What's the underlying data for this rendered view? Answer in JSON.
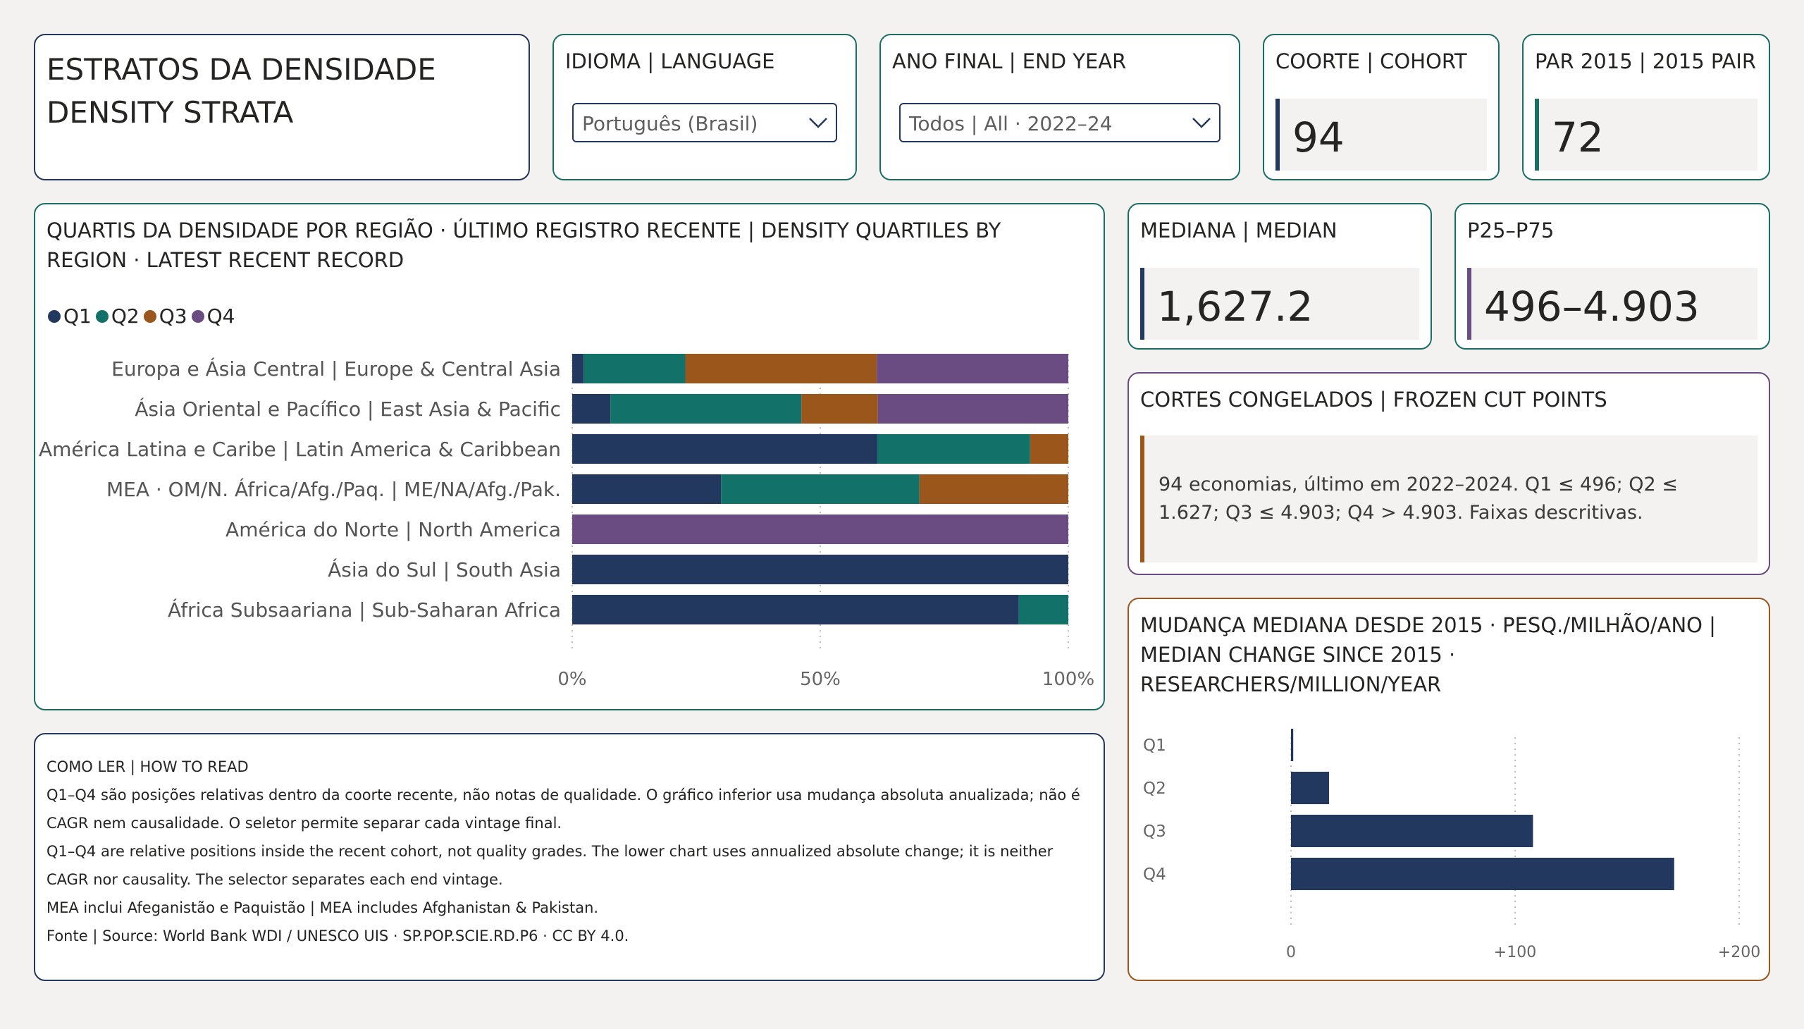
{
  "header": {
    "title_line1": "ESTRATOS DA DENSIDADE",
    "title_line2": "DENSITY STRATA"
  },
  "filters": {
    "language": {
      "label": "IDIOMA | LANGUAGE",
      "value": "Português (Brasil)"
    },
    "end_year": {
      "label": "ANO FINAL | END YEAR",
      "value": "Todos | All · 2022–24"
    }
  },
  "kpis": {
    "cohort": {
      "label": "COORTE | COHORT",
      "value": "94",
      "accent": "#22385e"
    },
    "pair": {
      "label": "PAR 2015 | 2015 PAIR",
      "value": "72",
      "accent": "#1a6e63"
    },
    "median": {
      "label": "MEDIANA | MEDIAN",
      "value": "1,627.2",
      "accent": "#22385e"
    },
    "iqr": {
      "label": "P25–P75",
      "value": "496–4.903",
      "accent": "#6a4b82"
    }
  },
  "frozen": {
    "title": "CORTES CONGELADOS | FROZEN CUT POINTS",
    "text": "94 economias, último em 2022–2024. Q1 ≤ 496; Q2 ≤ 1.627; Q3 ≤ 4.903; Q4 > 4.903. Faixas descritivas."
  },
  "howto": {
    "title": "COMO LER | HOW TO READ",
    "line1": "Q1–Q4 são posições relativas dentro da coorte recente, não notas de qualidade. O gráfico inferior usa mudança absoluta anualizada; não é CAGR nem causalidade. O seletor permite separar cada vintage final.",
    "line2": "Q1–Q4 are relative positions inside the recent cohort, not quality grades. The lower chart uses annualized absolute change; it is neither CAGR nor causality. The selector separates each end vintage.",
    "line3": "MEA inclui Afeganistão e Paquistão | MEA includes Afghanistan & Pakistan.",
    "line4": "Fonte | Source: World Bank WDI / UNESCO UIS · SP.POP.SCIE.RD.P6 · CC BY 4.0."
  },
  "colors": {
    "Q1": "#22385e",
    "Q2": "#12726a",
    "Q3": "#9b561c",
    "Q4": "#6a4b82"
  },
  "chart_data": [
    {
      "type": "bar",
      "stacked": "percent",
      "orientation": "horizontal",
      "title": "QUARTIS DA DENSIDADE POR REGIÃO · ÚLTIMO REGISTRO RECENTE | DENSITY QUARTILES BY REGION · LATEST RECENT RECORD",
      "categories": [
        "Europa e Ásia Central | Europe & Central Asia",
        "Ásia Oriental e Pacífico | East Asia & Pacific",
        "América Latina e Caribe | Latin America & Caribbean",
        "MEA · OM/N. África/Afg./Paq. | ME/NA/Afg./Pak.",
        "América do Norte | North America",
        "Ásia do Sul | South Asia",
        "África Subsaariana | Sub-Saharan Africa"
      ],
      "series": [
        {
          "name": "Q1",
          "values": [
            2.3,
            7.7,
            61.5,
            30.0,
            0,
            100,
            90.0
          ]
        },
        {
          "name": "Q2",
          "values": [
            20.5,
            38.5,
            30.8,
            40.0,
            0,
            0,
            10.0
          ]
        },
        {
          "name": "Q3",
          "values": [
            38.6,
            15.4,
            7.7,
            30.0,
            0,
            0,
            0
          ]
        },
        {
          "name": "Q4",
          "values": [
            38.6,
            38.4,
            0,
            0,
            100,
            0,
            0
          ]
        }
      ],
      "xlim": [
        0,
        100
      ],
      "xticks": [
        "0%",
        "50%",
        "100%"
      ],
      "legend": "top-left",
      "grid": "vertical dotted"
    },
    {
      "type": "bar",
      "orientation": "horizontal",
      "title": "MUDANÇA MEDIANA DESDE 2015 · PESQ./MILHÃO/ANO | MEDIAN CHANGE SINCE 2015 · RESEARCHERS/MILLION/YEAR",
      "categories": [
        "Q1",
        "Q2",
        "Q3",
        "Q4"
      ],
      "values": [
        1,
        17,
        108,
        171
      ],
      "xlim": [
        0,
        200
      ],
      "xticks": [
        "0",
        "+100",
        "+200"
      ],
      "grid": "vertical dotted"
    }
  ]
}
